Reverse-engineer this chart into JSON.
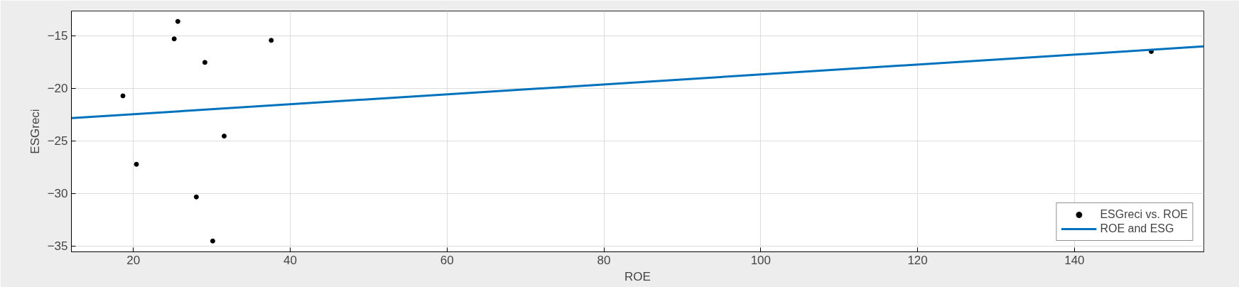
{
  "chart_data": {
    "type": "scatter",
    "xlabel": "ROE",
    "ylabel": "ESGreci",
    "series": [
      {
        "name": "ESGreci vs. ROE",
        "color": "#000000",
        "marker": "circle",
        "x": [
          18.67,
          20.39,
          25.21,
          25.67,
          29.12,
          28.03,
          30.12,
          31.58,
          37.58,
          149.8
        ],
        "values": [
          -20.71,
          -27.22,
          -15.29,
          -13.63,
          -17.53,
          -30.33,
          -34.52,
          -24.54,
          -15.43,
          -16.49
        ]
      },
      {
        "name": "ROE and ESG",
        "type": "line",
        "color": "#0072bd",
        "line_style": "solid",
        "x": [
          12.1,
          156.5
        ],
        "values": [
          -22.83,
          -16.01
        ]
      }
    ],
    "xlim": [
      12.1,
      156.5
    ],
    "ylim": [
      -35.55,
      -12.64
    ],
    "xticks": [
      20,
      40,
      60,
      80,
      100,
      120,
      140
    ],
    "yticks": [
      -35,
      -30,
      -25,
      -20,
      -15
    ],
    "grid": true,
    "legend": "bottom right"
  }
}
